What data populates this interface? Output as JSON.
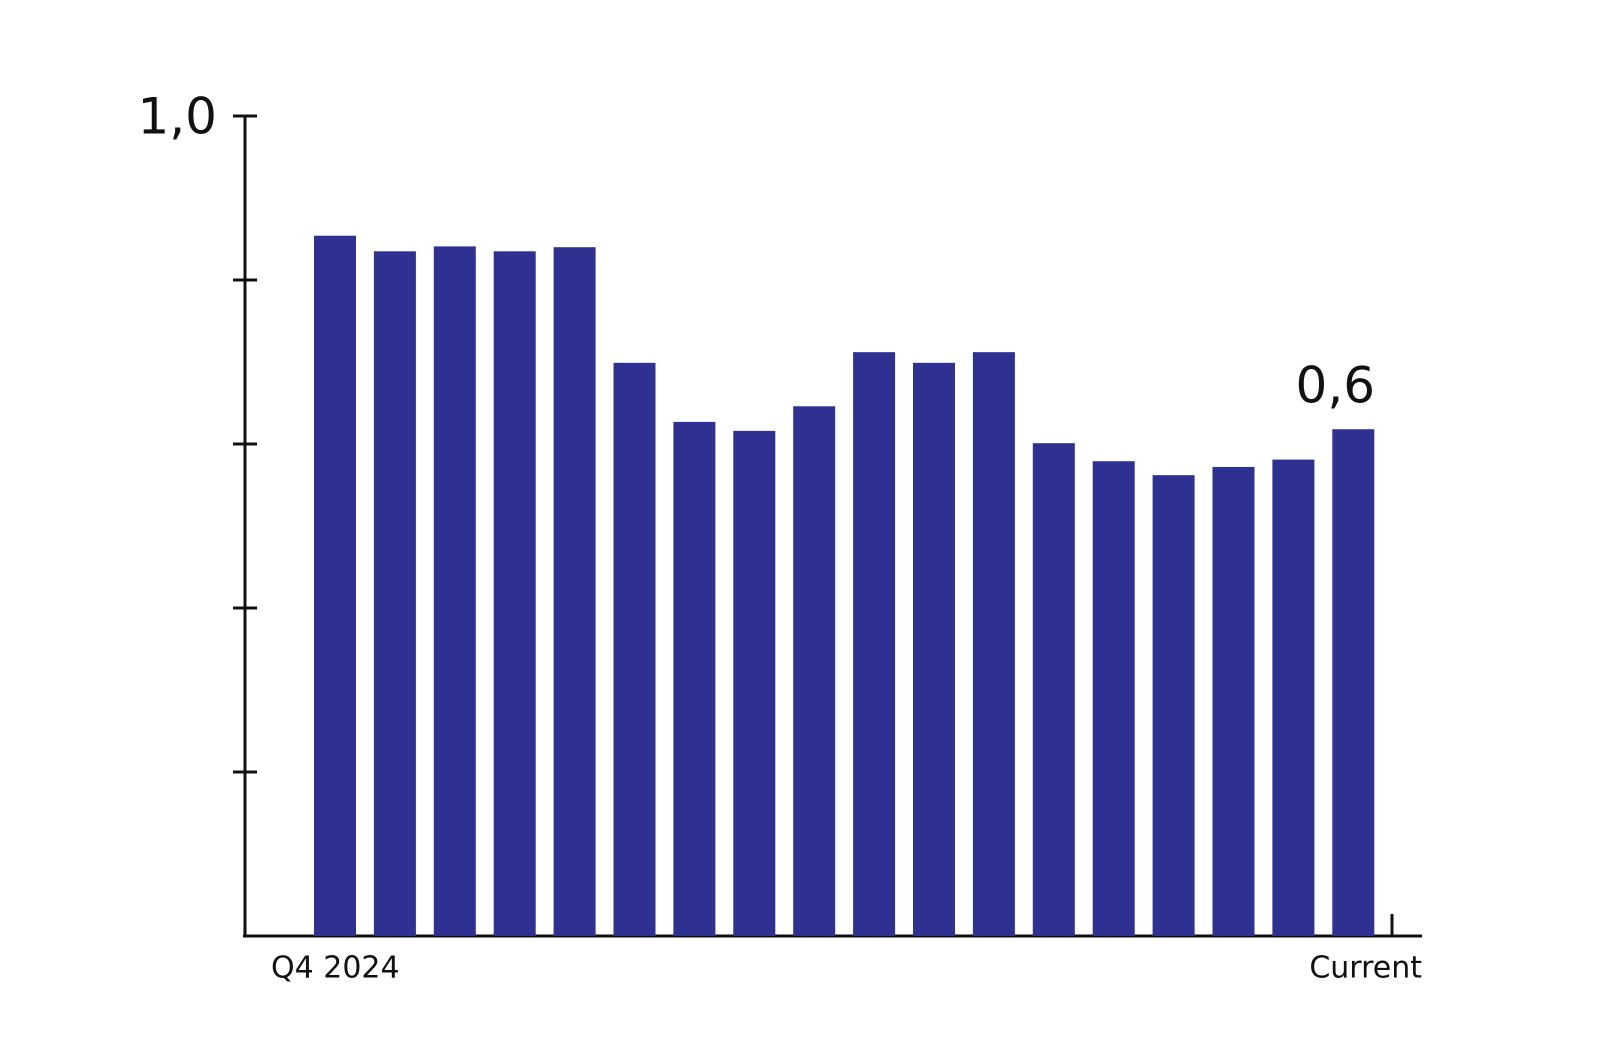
{
  "chart_data": {
    "type": "bar",
    "categories": [
      "Q4 2024",
      null,
      null,
      null,
      null,
      null,
      null,
      null,
      null,
      null,
      null,
      null,
      null,
      null,
      null,
      null,
      null,
      "Current"
    ],
    "values": [
      0.854,
      0.835,
      0.841,
      0.835,
      0.84,
      0.699,
      0.627,
      0.616,
      0.646,
      0.712,
      0.699,
      0.712,
      0.601,
      0.579,
      0.562,
      0.572,
      0.581,
      0.618
    ],
    "value_labels": [
      null,
      null,
      null,
      null,
      null,
      null,
      null,
      null,
      null,
      null,
      null,
      null,
      null,
      null,
      null,
      null,
      null,
      "0,6"
    ],
    "color": "#2e3192",
    "ylim": [
      0,
      1
    ],
    "yticks": [
      {
        "value": 0.2,
        "label": null
      },
      {
        "value": 0.4,
        "label": null
      },
      {
        "value": 0.6,
        "label": null
      },
      {
        "value": 0.8,
        "label": null
      },
      {
        "value": 1,
        "label": "1,0"
      }
    ],
    "grid": false
  }
}
